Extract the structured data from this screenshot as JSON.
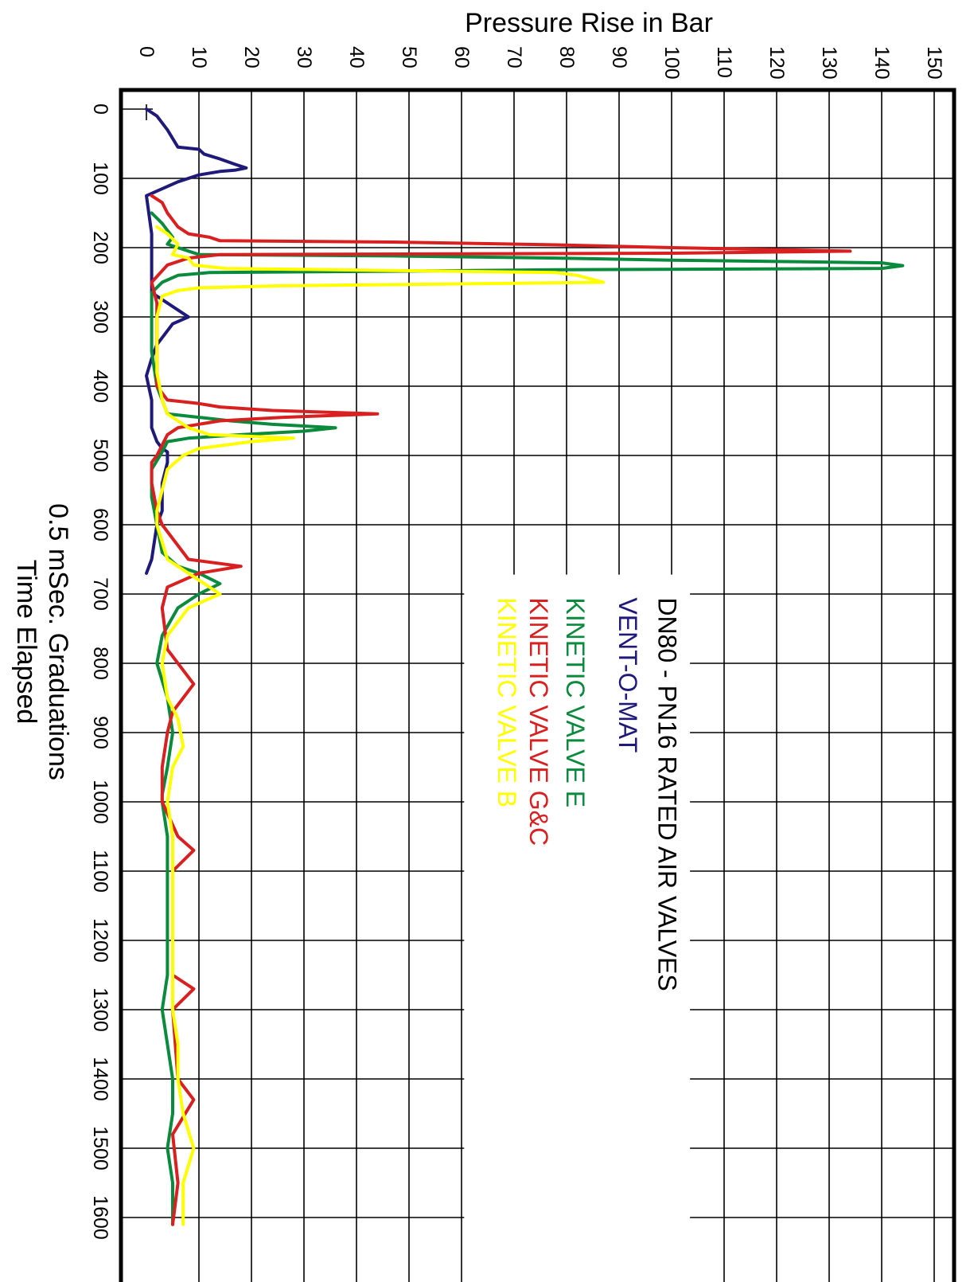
{
  "chart_data": {
    "type": "line",
    "title": "DN80 - PN16 RATED AIR VALVES",
    "ylabel": "Pressure Rise in Bar",
    "xlabel_line1": "0.5 mSec. Graduations",
    "xlabel_line2": "Time Elapsed",
    "x_ticks": [
      "0",
      "100",
      "200",
      "300",
      "400",
      "500",
      "600",
      "700",
      "800",
      "900",
      "1000",
      "1100",
      "1200",
      "1300",
      "1400",
      "1500",
      "1600"
    ],
    "y_ticks": [
      "0",
      "10",
      "20",
      "30",
      "40",
      "50",
      "60",
      "70",
      "80",
      "90",
      "100",
      "110",
      "120",
      "130",
      "140",
      "150"
    ],
    "xlim": [
      -35,
      1655
    ],
    "ylim": [
      -3,
      150
    ],
    "grid": true,
    "legend_position": "upper-right-inside",
    "series": [
      {
        "name": "VENT-O-MAT",
        "color": "#1f1a7a",
        "points": [
          [
            0,
            0
          ],
          [
            10,
            2
          ],
          [
            30,
            4
          ],
          [
            55,
            6
          ],
          [
            58,
            10
          ],
          [
            65,
            11
          ],
          [
            72,
            14
          ],
          [
            80,
            17
          ],
          [
            85,
            19
          ],
          [
            88,
            17
          ],
          [
            90,
            14
          ],
          [
            95,
            10
          ],
          [
            105,
            6
          ],
          [
            125,
            0
          ],
          [
            180,
            1
          ],
          [
            265,
            1
          ],
          [
            280,
            4
          ],
          [
            290,
            6
          ],
          [
            300,
            8
          ],
          [
            310,
            5
          ],
          [
            330,
            3
          ],
          [
            340,
            2
          ],
          [
            360,
            1
          ],
          [
            385,
            0
          ],
          [
            420,
            1
          ],
          [
            460,
            1
          ],
          [
            480,
            2
          ],
          [
            490,
            3
          ],
          [
            495,
            4
          ],
          [
            510,
            4
          ],
          [
            540,
            3
          ],
          [
            580,
            3
          ],
          [
            600,
            2
          ],
          [
            650,
            1
          ],
          [
            670,
            0
          ]
        ]
      },
      {
        "name": "KINETIC VALVE E",
        "color": "#0a8a3c",
        "points": [
          [
            150,
            1
          ],
          [
            165,
            3
          ],
          [
            175,
            4
          ],
          [
            185,
            5
          ],
          [
            195,
            4
          ],
          [
            200,
            6
          ],
          [
            210,
            10
          ],
          [
            212,
            47
          ],
          [
            215,
            78
          ],
          [
            218,
            100
          ],
          [
            222,
            140
          ],
          [
            226,
            144
          ],
          [
            230,
            140
          ],
          [
            232,
            78
          ],
          [
            234,
            47
          ],
          [
            236,
            12
          ],
          [
            240,
            6
          ],
          [
            250,
            3
          ],
          [
            265,
            1
          ],
          [
            290,
            1
          ],
          [
            350,
            1
          ],
          [
            400,
            2
          ],
          [
            420,
            3
          ],
          [
            440,
            4
          ],
          [
            445,
            10
          ],
          [
            450,
            16
          ],
          [
            455,
            24
          ],
          [
            460,
            36
          ],
          [
            465,
            30
          ],
          [
            470,
            18
          ],
          [
            475,
            8
          ],
          [
            480,
            4
          ],
          [
            495,
            3
          ],
          [
            520,
            1
          ],
          [
            540,
            1
          ],
          [
            560,
            1
          ],
          [
            600,
            2
          ],
          [
            640,
            3
          ],
          [
            660,
            6
          ],
          [
            670,
            10
          ],
          [
            685,
            14
          ],
          [
            700,
            10
          ],
          [
            720,
            6
          ],
          [
            760,
            3
          ],
          [
            800,
            2
          ],
          [
            850,
            4
          ],
          [
            900,
            5
          ],
          [
            950,
            4
          ],
          [
            990,
            3
          ],
          [
            1000,
            3
          ],
          [
            1050,
            4
          ],
          [
            1100,
            4
          ],
          [
            1200,
            4
          ],
          [
            1250,
            4
          ],
          [
            1300,
            3
          ],
          [
            1350,
            4
          ],
          [
            1400,
            5
          ],
          [
            1450,
            5
          ],
          [
            1500,
            4
          ],
          [
            1550,
            5
          ],
          [
            1610,
            5
          ]
        ]
      },
      {
        "name": "KINETIC VALVE G&C",
        "color": "#d92020",
        "points": [
          [
            125,
            1
          ],
          [
            135,
            3
          ],
          [
            150,
            4
          ],
          [
            160,
            5
          ],
          [
            170,
            6
          ],
          [
            180,
            8
          ],
          [
            185,
            12
          ],
          [
            190,
            14
          ],
          [
            192,
            47
          ],
          [
            196,
            78
          ],
          [
            200,
            100
          ],
          [
            205,
            134
          ],
          [
            208,
            100
          ],
          [
            210,
            14
          ],
          [
            215,
            8
          ],
          [
            225,
            4
          ],
          [
            250,
            1
          ],
          [
            280,
            2
          ],
          [
            330,
            2
          ],
          [
            400,
            2
          ],
          [
            420,
            4
          ],
          [
            425,
            10
          ],
          [
            430,
            14
          ],
          [
            435,
            24
          ],
          [
            440,
            44
          ],
          [
            445,
            26
          ],
          [
            450,
            14
          ],
          [
            460,
            6
          ],
          [
            470,
            4
          ],
          [
            500,
            2
          ],
          [
            510,
            1
          ],
          [
            540,
            1
          ],
          [
            580,
            2
          ],
          [
            600,
            3
          ],
          [
            650,
            8
          ],
          [
            660,
            18
          ],
          [
            670,
            10
          ],
          [
            690,
            4
          ],
          [
            720,
            3
          ],
          [
            780,
            4
          ],
          [
            800,
            6
          ],
          [
            830,
            9
          ],
          [
            870,
            5
          ],
          [
            900,
            4
          ],
          [
            950,
            3
          ],
          [
            1000,
            3
          ],
          [
            1050,
            6
          ],
          [
            1070,
            9
          ],
          [
            1100,
            5
          ],
          [
            1200,
            5
          ],
          [
            1250,
            5
          ],
          [
            1270,
            9
          ],
          [
            1300,
            5
          ],
          [
            1400,
            6
          ],
          [
            1430,
            9
          ],
          [
            1480,
            5
          ],
          [
            1550,
            6
          ],
          [
            1610,
            5
          ]
        ]
      },
      {
        "name": "KINETIC VALVE B",
        "color": "#ffff00",
        "points": [
          [
            170,
            2
          ],
          [
            180,
            4
          ],
          [
            195,
            6
          ],
          [
            210,
            5
          ],
          [
            215,
            8
          ],
          [
            225,
            9
          ],
          [
            230,
            15
          ],
          [
            233,
            47
          ],
          [
            236,
            78
          ],
          [
            240,
            82
          ],
          [
            250,
            87
          ],
          [
            255,
            26
          ],
          [
            258,
            10
          ],
          [
            262,
            6
          ],
          [
            270,
            3
          ],
          [
            300,
            2
          ],
          [
            380,
            2
          ],
          [
            420,
            3
          ],
          [
            440,
            4
          ],
          [
            450,
            6
          ],
          [
            460,
            8
          ],
          [
            470,
            12
          ],
          [
            475,
            28
          ],
          [
            480,
            20
          ],
          [
            490,
            10
          ],
          [
            500,
            7
          ],
          [
            520,
            4
          ],
          [
            550,
            3
          ],
          [
            580,
            2
          ],
          [
            600,
            2
          ],
          [
            650,
            4
          ],
          [
            680,
            10
          ],
          [
            700,
            14
          ],
          [
            720,
            8
          ],
          [
            760,
            4
          ],
          [
            800,
            3
          ],
          [
            850,
            4
          ],
          [
            880,
            6
          ],
          [
            920,
            7
          ],
          [
            950,
            5
          ],
          [
            1000,
            4
          ],
          [
            1050,
            5
          ],
          [
            1100,
            5
          ],
          [
            1150,
            5
          ],
          [
            1200,
            5
          ],
          [
            1250,
            5
          ],
          [
            1300,
            5
          ],
          [
            1350,
            6
          ],
          [
            1400,
            6
          ],
          [
            1450,
            7
          ],
          [
            1500,
            9
          ],
          [
            1550,
            7
          ],
          [
            1610,
            7
          ]
        ]
      }
    ]
  }
}
